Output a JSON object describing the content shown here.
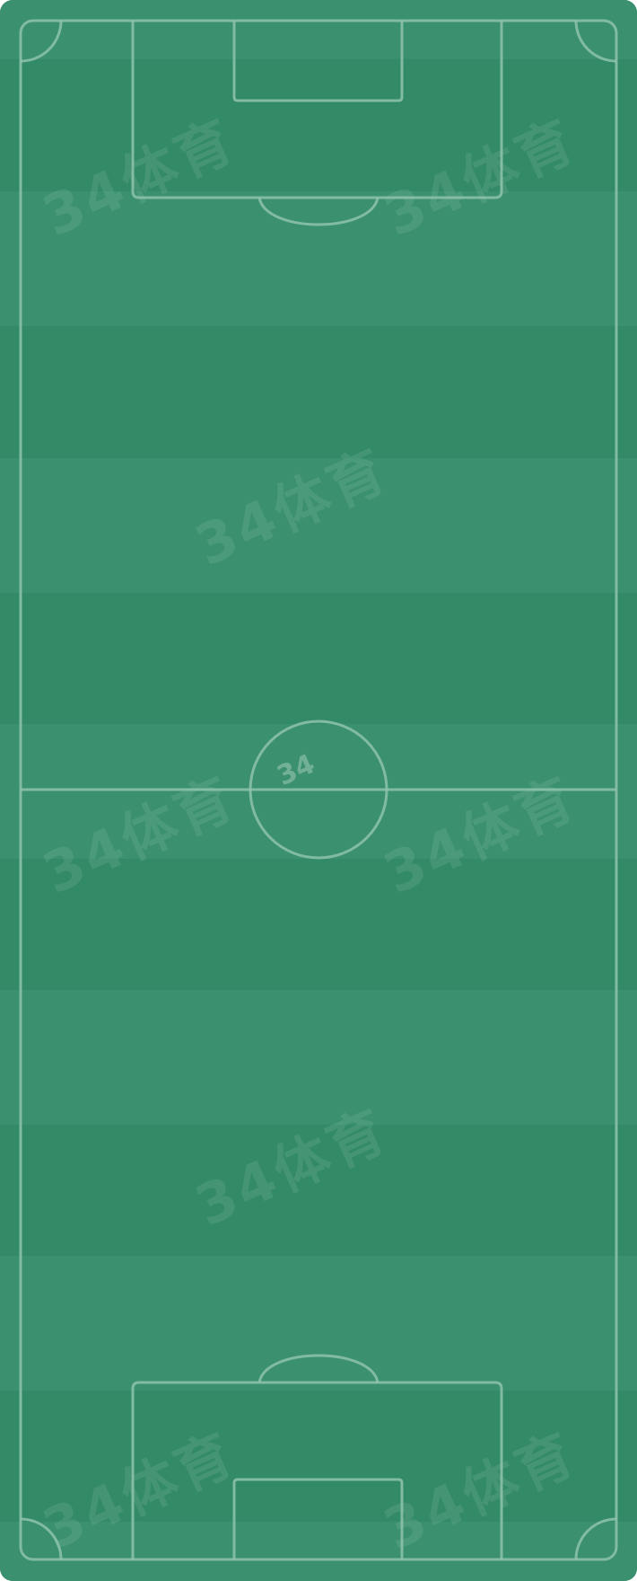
{
  "pitch": {
    "grass_dark": "#338a66",
    "grass_light": "#3b9070",
    "line_color": "#8fc3ad",
    "center_logo": "34",
    "watermark_text": "34体育"
  }
}
